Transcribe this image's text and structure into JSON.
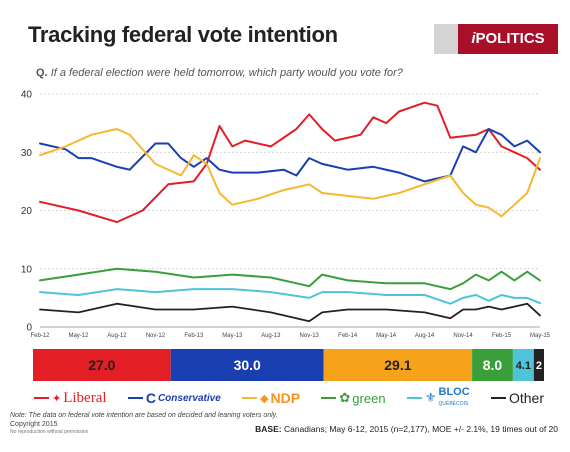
{
  "header": {
    "title": "Tracking federal vote intention",
    "brand_prefix": "i",
    "brand_name": "POLITICS",
    "question_label": "Q.",
    "question_text": "If a federal election were held tomorrow, which party would you vote for?"
  },
  "chart_data": {
    "type": "line",
    "title": "Tracking federal vote intention",
    "subtitle": "If a federal election were held tomorrow, which party would you vote for?",
    "ylim": [
      0,
      40
    ],
    "y_ticks": [
      "0",
      "10",
      "20",
      "30",
      "40"
    ],
    "x_ticks": [
      "Feb-12",
      "May-12",
      "Aug-12",
      "Nov-12",
      "Feb-13",
      "May-13",
      "Aug-13",
      "Nov-13",
      "Feb-14",
      "May-14",
      "Aug-14",
      "Nov-14",
      "Feb-15",
      "May-15"
    ],
    "x_range": [
      "2012-02",
      "2015-05"
    ],
    "grid": "horizontal dotted",
    "series": [
      {
        "name": "Liberal",
        "color": "#e41e25",
        "points": [
          [
            "2012-02",
            21.5
          ],
          [
            "2012-05",
            20
          ],
          [
            "2012-08",
            18
          ],
          [
            "2012-10",
            20
          ],
          [
            "2012-12",
            24.5
          ],
          [
            "2013-02",
            25
          ],
          [
            "2013-03",
            28
          ],
          [
            "2013-04",
            34.5
          ],
          [
            "2013-05",
            31
          ],
          [
            "2013-06",
            32
          ],
          [
            "2013-08",
            31
          ],
          [
            "2013-10",
            34
          ],
          [
            "2013-11",
            36.5
          ],
          [
            "2013-12",
            34
          ],
          [
            "2014-01",
            32
          ],
          [
            "2014-03",
            33
          ],
          [
            "2014-04",
            36
          ],
          [
            "2014-05",
            35
          ],
          [
            "2014-06",
            37
          ],
          [
            "2014-08",
            38.5
          ],
          [
            "2014-09",
            38
          ],
          [
            "2014-10",
            32.5
          ],
          [
            "2014-12",
            33
          ],
          [
            "2015-01",
            34
          ],
          [
            "2015-02",
            31
          ],
          [
            "2015-03",
            30
          ],
          [
            "2015-04",
            29
          ],
          [
            "2015-05",
            27
          ]
        ]
      },
      {
        "name": "Conservative",
        "color": "#1a3fb0",
        "points": [
          [
            "2012-02",
            31.5
          ],
          [
            "2012-04",
            30.5
          ],
          [
            "2012-05",
            29
          ],
          [
            "2012-06",
            29
          ],
          [
            "2012-08",
            27.5
          ],
          [
            "2012-09",
            27
          ],
          [
            "2012-11",
            31.5
          ],
          [
            "2012-12",
            31.5
          ],
          [
            "2013-01",
            29
          ],
          [
            "2013-02",
            27.5
          ],
          [
            "2013-03",
            29
          ],
          [
            "2013-04",
            27
          ],
          [
            "2013-05",
            26.5
          ],
          [
            "2013-07",
            26.5
          ],
          [
            "2013-09",
            27
          ],
          [
            "2013-10",
            26
          ],
          [
            "2013-11",
            29
          ],
          [
            "2013-12",
            28
          ],
          [
            "2014-02",
            27
          ],
          [
            "2014-04",
            27.5
          ],
          [
            "2014-06",
            26.5
          ],
          [
            "2014-08",
            25
          ],
          [
            "2014-10",
            26
          ],
          [
            "2014-11",
            31
          ],
          [
            "2014-12",
            30
          ],
          [
            "2015-01",
            34
          ],
          [
            "2015-02",
            33
          ],
          [
            "2015-03",
            31
          ],
          [
            "2015-04",
            32
          ],
          [
            "2015-05",
            30
          ]
        ]
      },
      {
        "name": "NDP",
        "color": "#f7b731",
        "points": [
          [
            "2012-02",
            29.5
          ],
          [
            "2012-04",
            31
          ],
          [
            "2012-06",
            33
          ],
          [
            "2012-08",
            34
          ],
          [
            "2012-09",
            33
          ],
          [
            "2012-11",
            28
          ],
          [
            "2012-12",
            27
          ],
          [
            "2013-01",
            26
          ],
          [
            "2013-02",
            29.5
          ],
          [
            "2013-03",
            28
          ],
          [
            "2013-04",
            23
          ],
          [
            "2013-05",
            21
          ],
          [
            "2013-07",
            22
          ],
          [
            "2013-09",
            23.5
          ],
          [
            "2013-11",
            24.5
          ],
          [
            "2013-12",
            23
          ],
          [
            "2014-02",
            22.5
          ],
          [
            "2014-04",
            22
          ],
          [
            "2014-06",
            23
          ],
          [
            "2014-08",
            24.5
          ],
          [
            "2014-10",
            26
          ],
          [
            "2014-11",
            23
          ],
          [
            "2014-12",
            21
          ],
          [
            "2015-01",
            20.5
          ],
          [
            "2015-02",
            19
          ],
          [
            "2015-03",
            21
          ],
          [
            "2015-04",
            23
          ],
          [
            "2015-05",
            29
          ]
        ]
      },
      {
        "name": "green",
        "color": "#3a9e3a",
        "points": [
          [
            "2012-02",
            8
          ],
          [
            "2012-05",
            9
          ],
          [
            "2012-08",
            10
          ],
          [
            "2012-11",
            9.5
          ],
          [
            "2013-02",
            8.5
          ],
          [
            "2013-05",
            9
          ],
          [
            "2013-08",
            8.5
          ],
          [
            "2013-11",
            7
          ],
          [
            "2013-12",
            9
          ],
          [
            "2014-02",
            8
          ],
          [
            "2014-05",
            7.5
          ],
          [
            "2014-08",
            7.5
          ],
          [
            "2014-10",
            6.5
          ],
          [
            "2014-11",
            7.5
          ],
          [
            "2014-12",
            9
          ],
          [
            "2015-01",
            8
          ],
          [
            "2015-02",
            9.5
          ],
          [
            "2015-03",
            8
          ],
          [
            "2015-04",
            9.5
          ],
          [
            "2015-05",
            8
          ]
        ]
      },
      {
        "name": "BLOC",
        "color": "#4fc3d9",
        "points": [
          [
            "2012-02",
            6
          ],
          [
            "2012-05",
            5.5
          ],
          [
            "2012-08",
            6.5
          ],
          [
            "2012-11",
            6
          ],
          [
            "2013-02",
            6.5
          ],
          [
            "2013-05",
            6.5
          ],
          [
            "2013-08",
            6
          ],
          [
            "2013-11",
            5
          ],
          [
            "2013-12",
            6
          ],
          [
            "2014-02",
            6
          ],
          [
            "2014-05",
            5.5
          ],
          [
            "2014-08",
            5.5
          ],
          [
            "2014-10",
            4
          ],
          [
            "2014-11",
            5
          ],
          [
            "2014-12",
            5.5
          ],
          [
            "2015-01",
            4.5
          ],
          [
            "2015-02",
            5.5
          ],
          [
            "2015-03",
            5
          ],
          [
            "2015-04",
            5
          ],
          [
            "2015-05",
            4.1
          ]
        ]
      },
      {
        "name": "Other",
        "color": "#222222",
        "points": [
          [
            "2012-02",
            3
          ],
          [
            "2012-05",
            2.5
          ],
          [
            "2012-08",
            4
          ],
          [
            "2012-11",
            3
          ],
          [
            "2013-02",
            3
          ],
          [
            "2013-05",
            3.5
          ],
          [
            "2013-08",
            2.5
          ],
          [
            "2013-11",
            1
          ],
          [
            "2013-12",
            2.5
          ],
          [
            "2014-02",
            3
          ],
          [
            "2014-05",
            3
          ],
          [
            "2014-08",
            2.5
          ],
          [
            "2014-10",
            1.5
          ],
          [
            "2014-11",
            3
          ],
          [
            "2014-12",
            3
          ],
          [
            "2015-01",
            3.5
          ],
          [
            "2015-02",
            3
          ],
          [
            "2015-03",
            3.5
          ],
          [
            "2015-04",
            4
          ],
          [
            "2015-05",
            2
          ]
        ]
      }
    ],
    "summary_bar": [
      {
        "name": "Liberal",
        "value": 27.0,
        "label": "27.0",
        "color": "#e41e25",
        "text_color": "#222222"
      },
      {
        "name": "Conservative",
        "value": 30.0,
        "label": "30.0",
        "color": "#1a3fb0",
        "text_color": "#ffffff"
      },
      {
        "name": "NDP",
        "value": 29.1,
        "label": "29.1",
        "color": "#f7a21b",
        "text_color": "#222222"
      },
      {
        "name": "green",
        "value": 8.0,
        "label": "8.0",
        "color": "#3a9e3a",
        "text_color": "#ffffff"
      },
      {
        "name": "BLOC",
        "value": 4.1,
        "label": "4.1",
        "color": "#4fc3d9",
        "text_color": "#222222"
      },
      {
        "name": "Other",
        "value": 2,
        "label": "2",
        "color": "#222222",
        "text_color": "#ffffff"
      }
    ]
  },
  "legend": {
    "liberal": "Liberal",
    "conservative": "Conservative",
    "ndp": "NDP",
    "green": "green",
    "bloc": "BLOC",
    "bloc_sub": "QUÉBÉCOIS",
    "other": "Other"
  },
  "footer": {
    "note": "Note: The data on federal vote intention are based on decided and leaning voters only.",
    "copyright": "Copyright 2015",
    "no_reproduction": "No reproduction without permission",
    "base_label": "BASE:",
    "base_text": "Canadians; May 6-12, 2015 (n=2,177), MOE +/- 2.1%, 19 times out of 20"
  }
}
